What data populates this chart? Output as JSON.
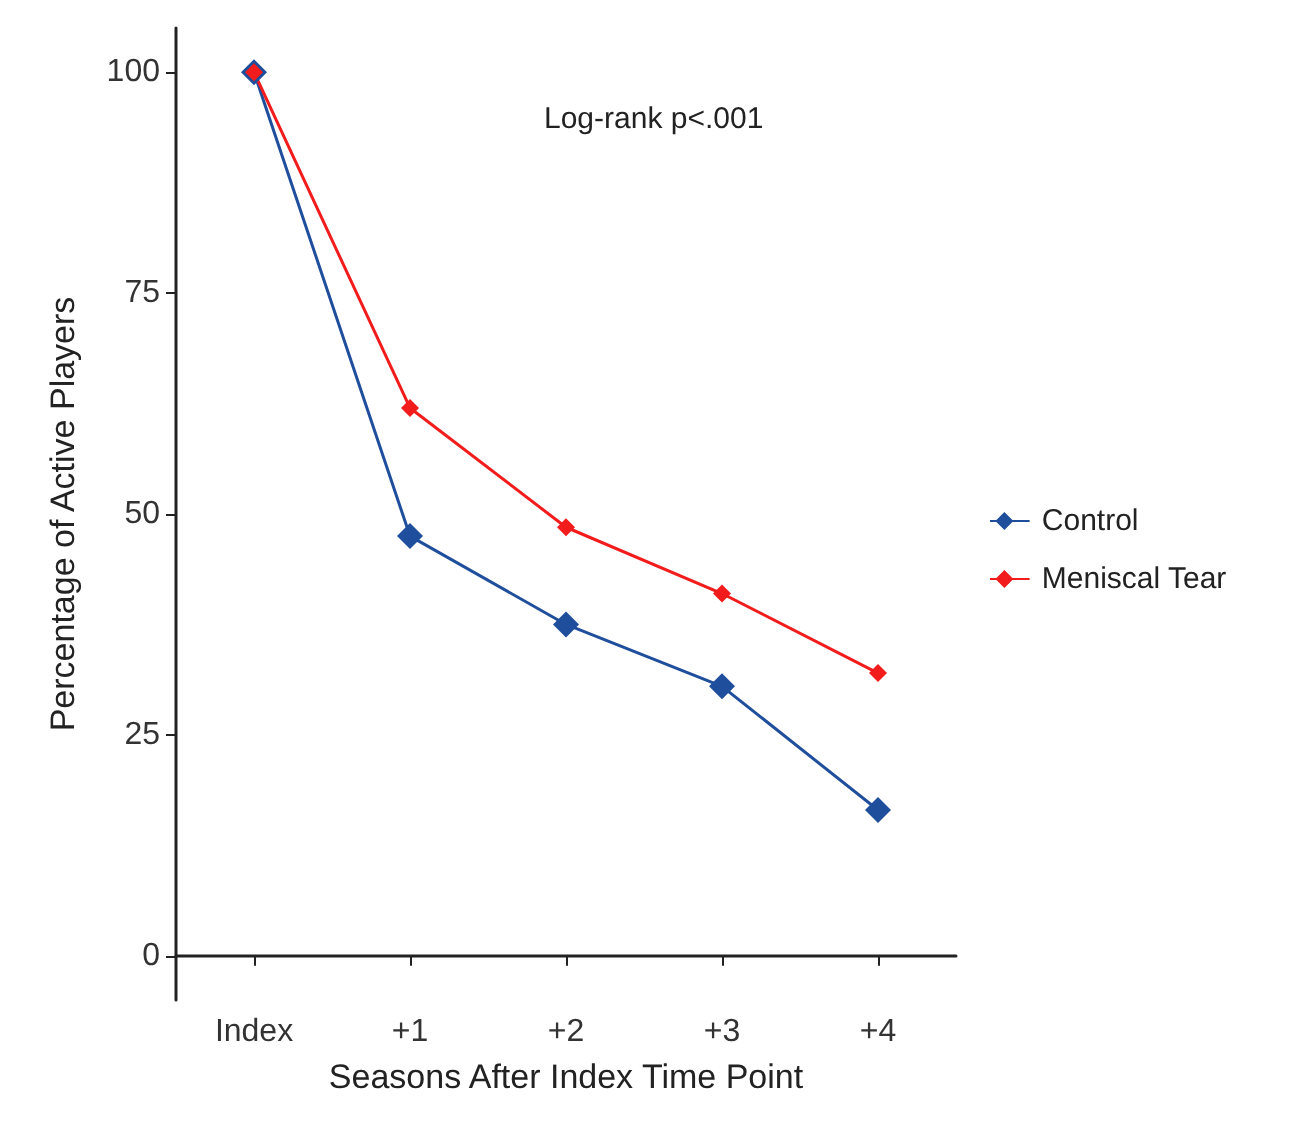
{
  "chart_data": {
    "type": "line",
    "xlabel": "Seasons After Index Time Point",
    "ylabel": "Percentage of Active Players",
    "categories": [
      "Index",
      "+1",
      "+2",
      "+3",
      "+4"
    ],
    "series": [
      {
        "name": "Control",
        "color": "#1f4e9c",
        "values": [
          100,
          47.5,
          37.5,
          30.5,
          16.5
        ]
      },
      {
        "name": "Meniscal Tear",
        "color": "#f21c1c",
        "values": [
          100,
          62,
          48.5,
          41,
          32
        ]
      }
    ],
    "ylim": [
      -5,
      105
    ],
    "yticks": [
      0,
      25,
      50,
      75,
      100
    ],
    "grid": false,
    "legend": "right",
    "marker": "diamond",
    "line_style": "solid",
    "annotations": [
      "Log-rank p<.001"
    ]
  }
}
